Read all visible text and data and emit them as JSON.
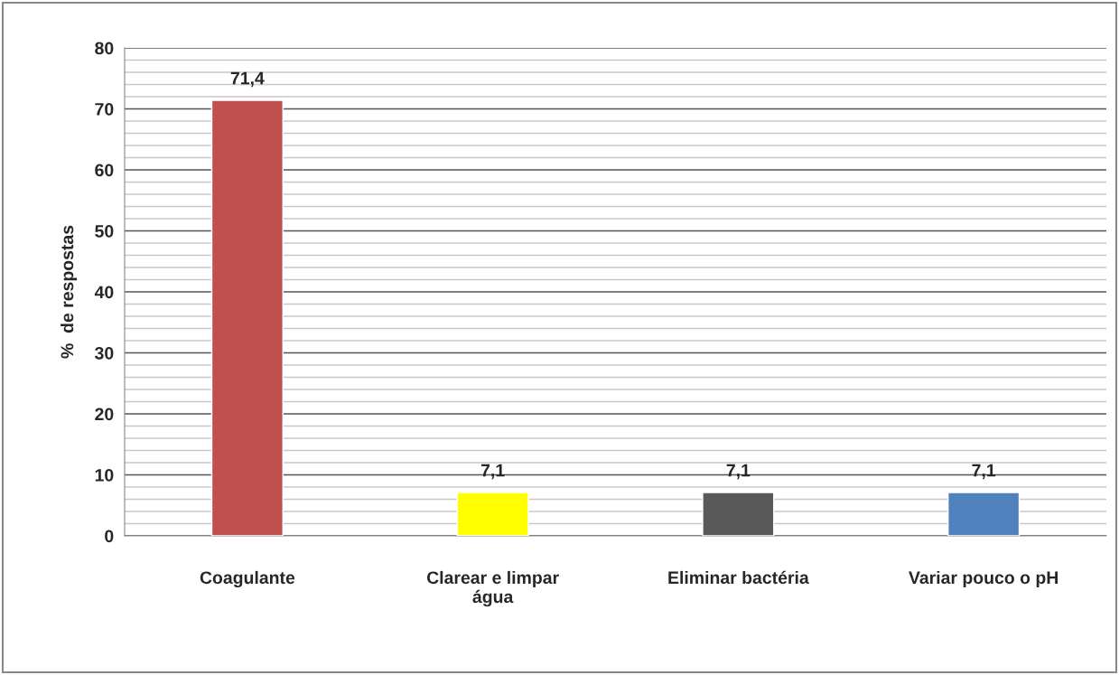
{
  "chart_data": {
    "type": "bar",
    "ylabel": "%  de respostas",
    "categories": [
      "Coagulante",
      "Clarear e limpar\nágua",
      "Eliminar bactéria",
      "Variar pouco o pH"
    ],
    "values": [
      71.4,
      7.1,
      7.1,
      7.1
    ],
    "colors": [
      "#c0504d",
      "#ffff00",
      "#595959",
      "#4f81bd"
    ],
    "value_labels": [
      "71,4",
      "7,1",
      "7,1",
      "7,1"
    ],
    "ylim": [
      0,
      80
    ],
    "yticks": [
      0,
      10,
      20,
      30,
      40,
      50,
      60,
      70,
      80
    ],
    "grid": "y"
  }
}
